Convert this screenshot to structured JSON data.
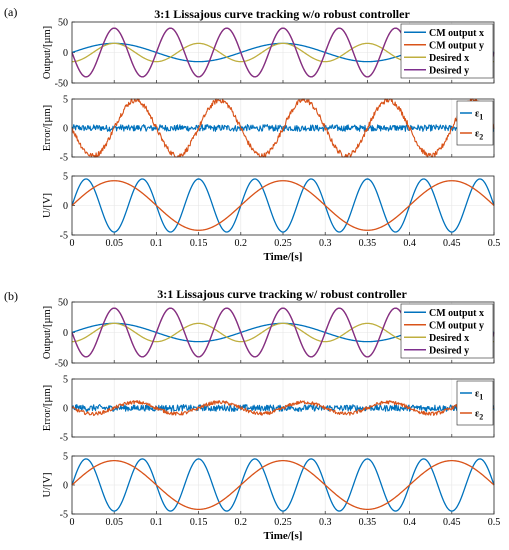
{
  "panels": [
    {
      "label": "(a)",
      "title": "3:1 Lissajous curve tracking w/o robust controller"
    },
    {
      "label": "(b)",
      "title": "3:1 Lissajous curve tracking w/ robust controller"
    }
  ],
  "colors": {
    "blue": "#0072BD",
    "orange": "#D95319",
    "yellow": "#BFAF3F",
    "purple": "#7E2F8E"
  },
  "chart_data": [
    {
      "type": "line",
      "panel": "(a)",
      "ylabel": "Output/[µm]",
      "xlim": [
        0,
        0.5
      ],
      "ylim": [
        -50,
        50
      ],
      "yticks": [
        -50,
        0,
        50
      ],
      "x_tick_labels": "none",
      "grid": true,
      "legend_position": "right",
      "series": [
        {
          "name": "CM output x",
          "color": "blue",
          "formula": "15*sin(2*pi*5*t)"
        },
        {
          "name": "CM output y",
          "color": "orange",
          "formula": "-40*sin(2*pi*15*t)"
        },
        {
          "name": "Desired x",
          "color": "yellow",
          "formula": "-15*cos(2*pi*10*t)"
        },
        {
          "name": "Desired y",
          "color": "purple",
          "formula": "-40*sin(2*pi*15*t)"
        }
      ]
    },
    {
      "type": "line",
      "panel": "(a)",
      "ylabel": "Error/[µm]",
      "xlim": [
        0,
        0.5
      ],
      "ylim": [
        -5,
        5
      ],
      "yticks": [
        -5,
        0,
        5
      ],
      "x_tick_labels": "none",
      "grid": true,
      "legend_position": "right",
      "series": [
        {
          "name": "ε1",
          "name_parts": [
            "ε",
            "1"
          ],
          "color": "blue",
          "formula": "noise, amplitude ~0.6"
        },
        {
          "name": "ε2",
          "name_parts": [
            "ε",
            "2"
          ],
          "color": "orange",
          "formula": "-4.8*sin(2*pi*10*t) + noise ~0.5"
        }
      ]
    },
    {
      "type": "line",
      "panel": "(a)",
      "ylabel": "U/[V]",
      "xlabel": "Time/[s]",
      "xlim": [
        0,
        0.5
      ],
      "ylim": [
        -5,
        5
      ],
      "yticks": [
        -5,
        0,
        5
      ],
      "xticks": [
        0,
        0.05,
        0.1,
        0.15,
        0.2,
        0.25,
        0.3,
        0.35,
        0.4,
        0.45,
        0.5
      ],
      "x_tick_labels": [
        "0",
        "0.05",
        "0.1",
        "0.15",
        "0.2",
        "0.25",
        "0.3",
        "0.35",
        "0.4",
        "0.45",
        "0.5"
      ],
      "grid": true,
      "series": [
        {
          "color": "blue",
          "formula": "4.5*sin(2*pi*15*t)"
        },
        {
          "color": "orange",
          "formula": "4.2*sin(2*pi*5*t)"
        }
      ]
    },
    {
      "type": "line",
      "panel": "(b)",
      "ylabel": "Output/[µm]",
      "xlim": [
        0,
        0.5
      ],
      "ylim": [
        -50,
        50
      ],
      "yticks": [
        -50,
        0,
        50
      ],
      "x_tick_labels": "none",
      "grid": true,
      "legend_position": "right",
      "series": [
        {
          "name": "CM output x",
          "color": "blue",
          "formula": "15*sin(2*pi*5*t)"
        },
        {
          "name": "CM output y",
          "color": "orange",
          "formula": "-40*sin(2*pi*15*t)"
        },
        {
          "name": "Desired x",
          "color": "yellow",
          "formula": "-15*cos(2*pi*10*t)"
        },
        {
          "name": "Desired y",
          "color": "purple",
          "formula": "-40*sin(2*pi*15*t)"
        }
      ]
    },
    {
      "type": "line",
      "panel": "(b)",
      "ylabel": "Error/[µm]",
      "xlim": [
        0,
        0.5
      ],
      "ylim": [
        -5,
        5
      ],
      "yticks": [
        -5,
        0,
        5
      ],
      "x_tick_labels": "none",
      "grid": true,
      "legend_position": "right",
      "series": [
        {
          "name": "ε1",
          "name_parts": [
            "ε",
            "1"
          ],
          "color": "blue",
          "formula": "noise, amplitude ~0.6"
        },
        {
          "name": "ε2",
          "name_parts": [
            "ε",
            "2"
          ],
          "color": "orange",
          "formula": "-1.0*sin(2*pi*10*t) + noise ~0.3"
        }
      ]
    },
    {
      "type": "line",
      "panel": "(b)",
      "ylabel": "U/[V]",
      "xlabel": "Time/[s]",
      "xlim": [
        0,
        0.5
      ],
      "ylim": [
        -5,
        5
      ],
      "yticks": [
        -5,
        0,
        5
      ],
      "xticks": [
        0,
        0.05,
        0.1,
        0.15,
        0.2,
        0.25,
        0.3,
        0.35,
        0.4,
        0.45,
        0.5
      ],
      "x_tick_labels": [
        "0",
        "0.05",
        "0.1",
        "0.15",
        "0.2",
        "0.25",
        "0.3",
        "0.35",
        "0.4",
        "0.45",
        "0.5"
      ],
      "grid": true,
      "series": [
        {
          "color": "blue",
          "formula": "4.5*sin(2*pi*15*t)"
        },
        {
          "color": "orange",
          "formula": "4.2*sin(2*pi*5*t)"
        }
      ]
    }
  ]
}
